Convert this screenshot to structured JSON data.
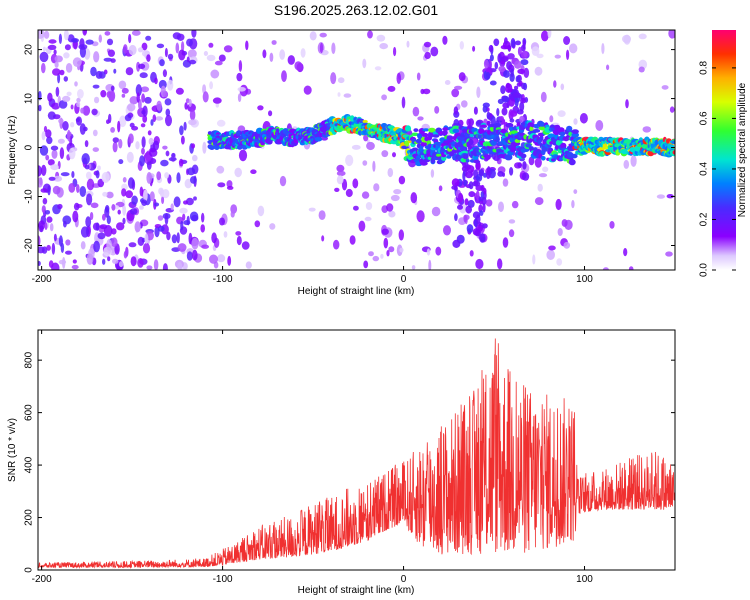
{
  "title": "S196.2025.263.12.02.G01",
  "chart_data": [
    {
      "type": "heatmap",
      "title": "S196.2025.263.12.02.G01",
      "xlabel": "Height of straight line (km)",
      "ylabel": "Frequency (Hz)",
      "xlim": [
        -202,
        150
      ],
      "ylim": [
        -25,
        24
      ],
      "x_ticks": [
        -200,
        -100,
        0,
        100
      ],
      "x_tick_labels": [
        "-200",
        "-100",
        "0",
        "100"
      ],
      "y_ticks": [
        20,
        10,
        0,
        -10,
        -20
      ],
      "y_tick_labels": [
        "20",
        "10",
        "0",
        "-10",
        "-20"
      ],
      "colorbar": {
        "label": "Normalized spectral amplitude",
        "range": [
          0,
          0.95
        ],
        "ticks": [
          0.0,
          0.2,
          0.4,
          0.6,
          0.8
        ],
        "tick_labels": [
          "0.0",
          "0.2",
          "0.4",
          "0.6",
          "0.8"
        ]
      },
      "ridge": {
        "x": [
          -107,
          -90,
          -80,
          -70,
          -60,
          -50,
          -45,
          -40,
          -35,
          -30,
          -25,
          -20,
          -15,
          -10,
          -5,
          0,
          5,
          10,
          20,
          30,
          40,
          50,
          60,
          70,
          80,
          90,
          100,
          110,
          120,
          130,
          140,
          150
        ],
        "frequency": [
          1.5,
          1.5,
          2.0,
          2.5,
          2.0,
          2.5,
          3.5,
          4.5,
          5.0,
          4.8,
          4.5,
          4.0,
          3.5,
          3.0,
          2.5,
          1.5,
          0.5,
          0.0,
          0.5,
          1.0,
          0.5,
          2.0,
          1.0,
          2.0,
          1.0,
          0.5,
          0.3,
          0.2,
          0.2,
          0.2,
          0.2,
          0.0
        ]
      }
    },
    {
      "type": "line",
      "xlabel": "Height of straight line (km)",
      "ylabel": "SNR (10 * v/v)",
      "xlim": [
        -202,
        150
      ],
      "ylim": [
        0,
        915
      ],
      "x_ticks": [
        -200,
        -100,
        0,
        100
      ],
      "x_tick_labels": [
        "-200",
        "-100",
        "0",
        "100"
      ],
      "y_ticks": [
        0,
        200,
        400,
        600,
        800
      ],
      "y_tick_labels": [
        "0",
        "200",
        "400",
        "600",
        "800"
      ],
      "series": [
        {
          "name": "SNR",
          "color": "#f03030",
          "envelope_x": [
            -202,
            -150,
            -110,
            -100,
            -90,
            -80,
            -70,
            -60,
            -50,
            -40,
            -30,
            -20,
            -10,
            0,
            5,
            10,
            20,
            30,
            40,
            50,
            60,
            70,
            80,
            90,
            95,
            96,
            100,
            110,
            120,
            130,
            140,
            150
          ],
          "baseline": [
            10,
            10,
            12,
            18,
            30,
            40,
            45,
            50,
            60,
            70,
            90,
            110,
            150,
            180,
            130,
            80,
            60,
            60,
            60,
            60,
            60,
            60,
            80,
            100,
            110,
            210,
            220,
            230,
            230,
            230,
            230,
            230
          ],
          "peak": [
            28,
            35,
            45,
            80,
            120,
            170,
            190,
            220,
            260,
            280,
            320,
            340,
            380,
            420,
            450,
            500,
            560,
            620,
            700,
            900,
            760,
            700,
            680,
            660,
            640,
            360,
            370,
            390,
            420,
            440,
            460,
            400
          ]
        }
      ]
    }
  ],
  "colors": {
    "colormap": [
      "#ffffff",
      "#ddc8ff",
      "#8a00ff",
      "#4a2bff",
      "#0080ff",
      "#00e5d0",
      "#30ff30",
      "#d8ff00",
      "#ffb000",
      "#ff3000",
      "#ff0070"
    ],
    "snr_line": "#f03030"
  }
}
